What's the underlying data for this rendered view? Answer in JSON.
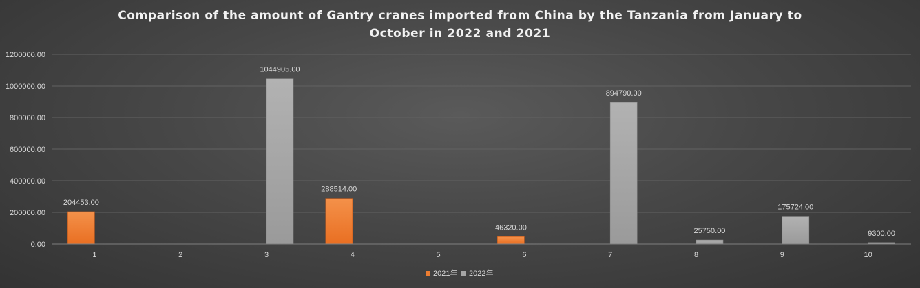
{
  "chart_data": {
    "type": "bar",
    "title": "Comparison of the amount of Gantry cranes imported from China by the Tanzania from January to October in 2022 and 2021",
    "xlabel": "",
    "ylabel": "",
    "categories": [
      "1",
      "2",
      "3",
      "4",
      "5",
      "6",
      "7",
      "8",
      "9",
      "10"
    ],
    "series": [
      {
        "name": "2021年",
        "color": "#ed7d31",
        "values": [
          204453.0,
          null,
          null,
          288514.0,
          null,
          46320.0,
          null,
          null,
          null,
          null
        ],
        "labels": [
          "204453.00",
          "",
          "",
          "288514.00",
          "",
          "46320.00",
          "",
          "",
          "",
          ""
        ]
      },
      {
        "name": "2022年",
        "color": "#a5a5a5",
        "values": [
          null,
          null,
          1044905.0,
          null,
          null,
          null,
          894790.0,
          25750.0,
          175724.0,
          9300.0
        ],
        "labels": [
          "",
          "",
          "1044905.00",
          "",
          "",
          "",
          "894790.00",
          "25750.00",
          "175724.00",
          "9300.00"
        ]
      }
    ],
    "ylim": [
      0,
      1200000
    ],
    "yticks": [
      0,
      200000,
      400000,
      600000,
      800000,
      1000000,
      1200000
    ],
    "ytick_labels": [
      "0.00",
      "200000.00",
      "400000.00",
      "600000.00",
      "800000.00",
      "1000000.00",
      "1200000.00"
    ],
    "grid": true,
    "legend_position": "bottom"
  }
}
